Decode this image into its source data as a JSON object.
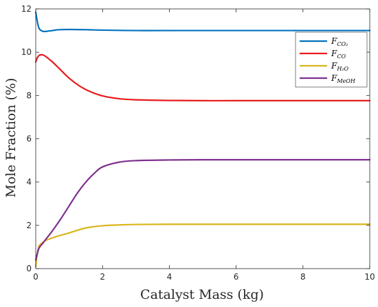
{
  "chart_data": {
    "type": "line",
    "xlabel": "Catalyst Mass (kg)",
    "ylabel": "Mole Fraction (%)",
    "xlim": [
      0,
      10
    ],
    "ylim": [
      0,
      12
    ],
    "xticks": [
      "0",
      "2",
      "4",
      "6",
      "8",
      "10"
    ],
    "yticks": [
      "0",
      "2",
      "4",
      "6",
      "8",
      "10",
      "12"
    ],
    "grid": false,
    "legend_position": "top-right",
    "series": [
      {
        "name": "F_CO2",
        "label_main": "F",
        "label_sub": "CO₂",
        "color": "#0072BD",
        "x": [
          0,
          0.05,
          0.1,
          0.2,
          0.3,
          0.5,
          0.7,
          1.0,
          1.5,
          2.0,
          3.0,
          4.0,
          6.0,
          8.0,
          10.0
        ],
        "y": [
          11.85,
          11.4,
          11.1,
          10.97,
          10.96,
          11.0,
          11.04,
          11.05,
          11.04,
          11.02,
          11.0,
          11.0,
          11.0,
          11.0,
          11.0
        ]
      },
      {
        "name": "F_CO",
        "label_main": "F",
        "label_sub": "CO",
        "color": "#E8191C",
        "x": [
          0,
          0.05,
          0.1,
          0.2,
          0.3,
          0.5,
          0.7,
          1.0,
          1.3,
          1.6,
          2.0,
          2.5,
          3.0,
          4.0,
          5.0,
          6.0,
          8.0,
          10.0
        ],
        "y": [
          9.55,
          9.75,
          9.85,
          9.88,
          9.8,
          9.55,
          9.25,
          8.8,
          8.45,
          8.2,
          7.98,
          7.85,
          7.8,
          7.77,
          7.76,
          7.76,
          7.76,
          7.76
        ]
      },
      {
        "name": "F_H2O",
        "label_main": "F",
        "label_sub": "H₂O",
        "color": "#D9B51A",
        "x": [
          0,
          0.05,
          0.1,
          0.2,
          0.3,
          0.5,
          0.7,
          1.0,
          1.5,
          2.0,
          2.5,
          3.0,
          4.0,
          6.0,
          8.0,
          10.0
        ],
        "y": [
          0.1,
          0.75,
          1.05,
          1.2,
          1.3,
          1.42,
          1.52,
          1.65,
          1.88,
          1.98,
          2.02,
          2.04,
          2.05,
          2.05,
          2.05,
          2.05
        ]
      },
      {
        "name": "F_MeOH",
        "label_main": "F",
        "label_sub": "MeOH",
        "color": "#7E2F8E",
        "x": [
          0,
          0.05,
          0.1,
          0.2,
          0.3,
          0.5,
          0.75,
          1.0,
          1.25,
          1.5,
          1.75,
          2.0,
          2.5,
          3.0,
          4.0,
          5.0,
          6.0,
          8.0,
          10.0
        ],
        "y": [
          0.4,
          0.7,
          0.95,
          1.15,
          1.35,
          1.75,
          2.3,
          2.9,
          3.5,
          4.0,
          4.4,
          4.7,
          4.92,
          4.99,
          5.02,
          5.03,
          5.03,
          5.03,
          5.03
        ]
      }
    ]
  }
}
